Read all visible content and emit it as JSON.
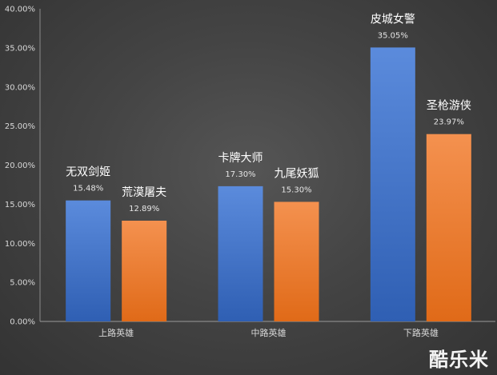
{
  "chart_data": {
    "type": "bar",
    "categories": [
      "上路英雄",
      "中路英雄",
      "下路英雄"
    ],
    "series": [
      {
        "values": [
          15.48,
          17.3,
          35.05
        ]
      },
      {
        "values": [
          12.89,
          15.3,
          23.97
        ]
      }
    ],
    "bar_labels": [
      [
        "无双剑姬",
        "卡牌大师",
        "皮城女警"
      ],
      [
        "荒漠屠夫",
        "九尾妖狐",
        "圣枪游侠"
      ]
    ],
    "data_labels": [
      [
        "15.48%",
        "17.30%",
        "35.05%"
      ],
      [
        "12.89%",
        "15.30%",
        "23.97%"
      ]
    ],
    "y_ticks": [
      "0.00%",
      "5.00%",
      "10.00%",
      "15.00%",
      "20.00%",
      "25.00%",
      "30.00%",
      "35.00%",
      "40.00%"
    ],
    "ylim": [
      0,
      40
    ],
    "grid": false,
    "colors": [
      "#4472C4",
      "#ED7D31"
    ]
  },
  "watermark": "酷乐米"
}
